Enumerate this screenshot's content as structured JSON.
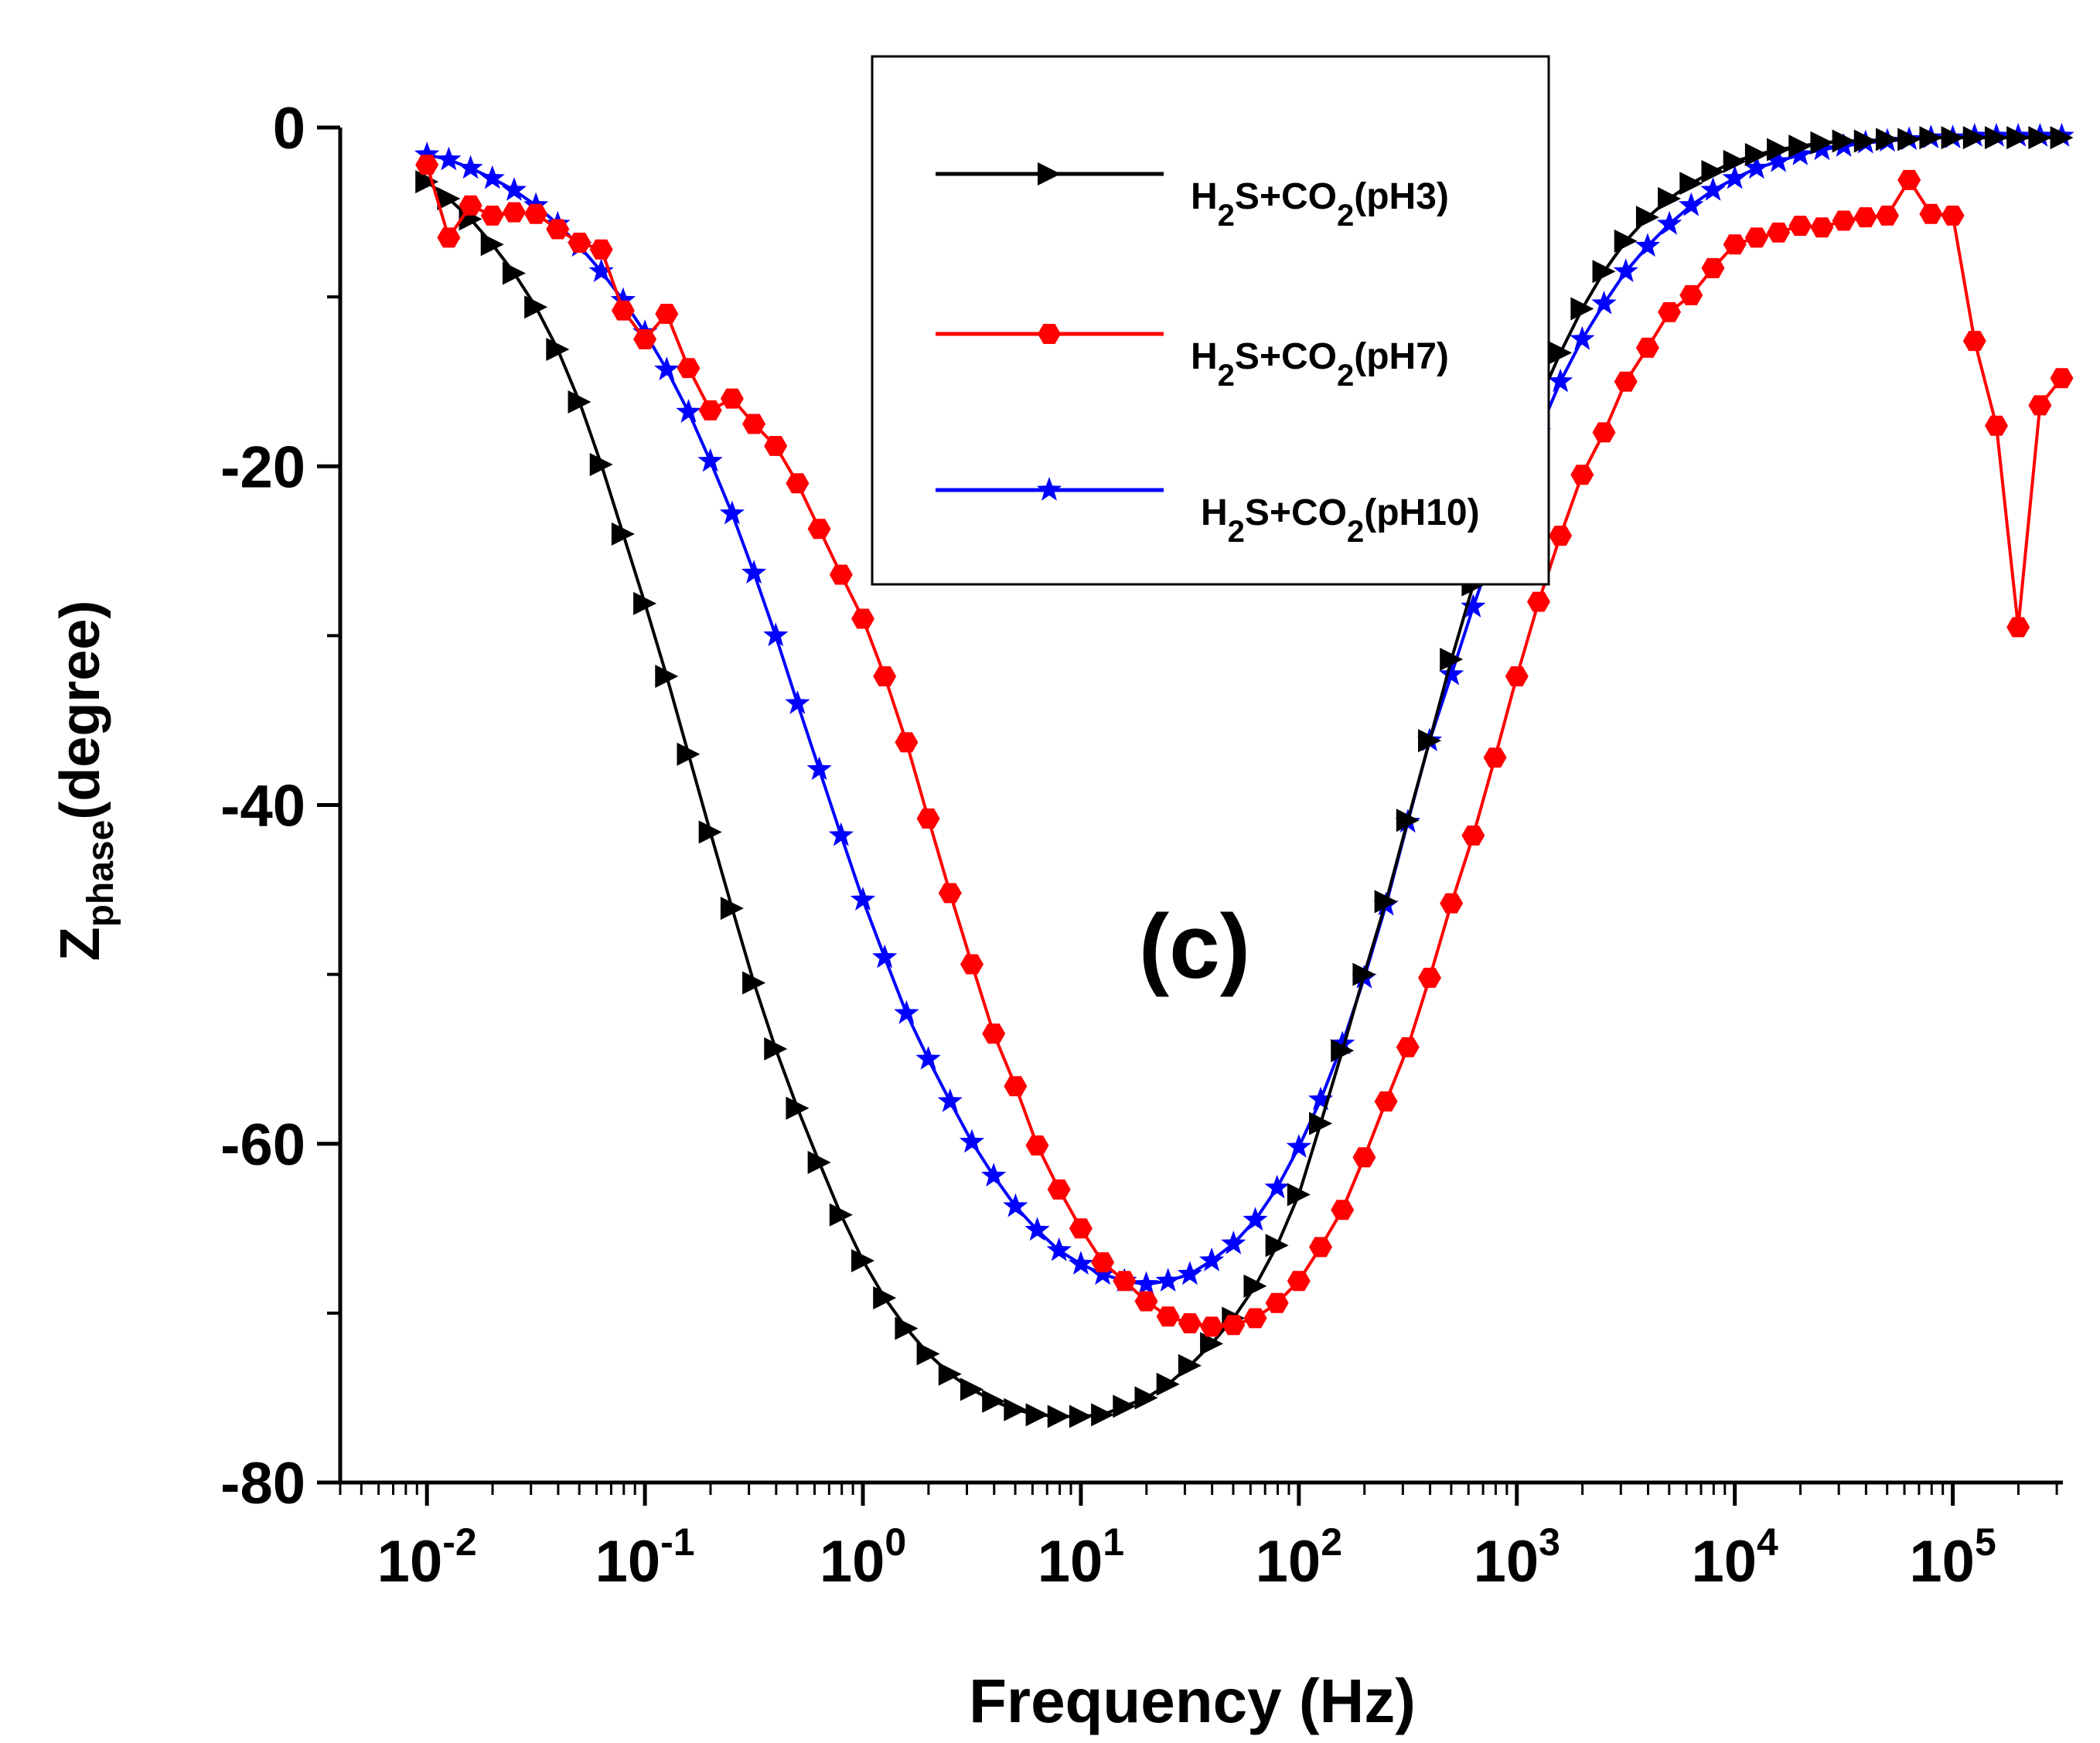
{
  "chart_data": {
    "type": "line",
    "title": "",
    "panel_label": "(c)",
    "xlabel": "Frequency (Hz)",
    "ylabel_main": "Z",
    "ylabel_sub": "phase",
    "ylabel_rest": "(degree)",
    "xscale": "log",
    "xlim": [
      0.004,
      320000
    ],
    "ylim": [
      -80,
      0
    ],
    "yticks": [
      0,
      -20,
      -40,
      -60,
      -80
    ],
    "ytick_labels": [
      "0",
      "-20",
      "-40",
      "-60",
      "-80"
    ],
    "xticks": [
      0.01,
      0.1,
      1,
      10,
      100,
      1000,
      10000,
      100000
    ],
    "xtick_labels": [
      {
        "base": "10",
        "exp": "-2"
      },
      {
        "base": "10",
        "exp": "-1"
      },
      {
        "base": "10",
        "exp": "0"
      },
      {
        "base": "10",
        "exp": "1"
      },
      {
        "base": "10",
        "exp": "2"
      },
      {
        "base": "10",
        "exp": "3"
      },
      {
        "base": "10",
        "exp": "4"
      },
      {
        "base": "10",
        "exp": "5"
      }
    ],
    "legend_position": "top-center",
    "series": [
      {
        "name": "H2S+CO2(pH3)",
        "legend": {
          "a": "H",
          "a_sub": "2",
          "b": "S+CO",
          "b_sub": "2",
          "c": "(pH3)"
        },
        "color": "#000000",
        "marker": "right-triangle",
        "logf": [
          -2,
          -1.9,
          -1.8,
          -1.7,
          -1.6,
          -1.5,
          -1.4,
          -1.3,
          -1.2,
          -1.1,
          -1,
          -0.9,
          -0.8,
          -0.7,
          -0.6,
          -0.5,
          -0.4,
          -0.3,
          -0.2,
          -0.1,
          0,
          0.1,
          0.2,
          0.3,
          0.4,
          0.5,
          0.6,
          0.7,
          0.8,
          0.9,
          1,
          1.1,
          1.2,
          1.3,
          1.4,
          1.5,
          1.6,
          1.7,
          1.8,
          1.9,
          2,
          2.1,
          2.2,
          2.3,
          2.4,
          2.5,
          2.6,
          2.7,
          2.8,
          2.9,
          3,
          3.1,
          3.2,
          3.3,
          3.4,
          3.5,
          3.6,
          3.7,
          3.8,
          3.9,
          4,
          4.1,
          4.2,
          4.3,
          4.4,
          4.5,
          4.6,
          4.7,
          4.8,
          4.9,
          5,
          5.1,
          5.2,
          5.3,
          5.4,
          5.5
        ],
        "values": [
          -3.2,
          -4.2,
          -5.4,
          -6.9,
          -8.6,
          -10.6,
          -13.1,
          -16.2,
          -19.9,
          -24.0,
          -28.1,
          -32.4,
          -37.0,
          -41.6,
          -46.1,
          -50.5,
          -54.4,
          -57.9,
          -61.1,
          -64.2,
          -66.9,
          -69.1,
          -70.9,
          -72.4,
          -73.6,
          -74.5,
          -75.2,
          -75.7,
          -76.0,
          -76.1,
          -76.1,
          -76.0,
          -75.5,
          -75.0,
          -74.2,
          -73.1,
          -71.8,
          -70.3,
          -68.4,
          -66.0,
          -63.0,
          -58.8,
          -54.5,
          -50.0,
          -45.7,
          -40.9,
          -36.2,
          -31.4,
          -27.0,
          -23.1,
          -19.5,
          -16.2,
          -13.3,
          -10.7,
          -8.5,
          -6.7,
          -5.3,
          -4.2,
          -3.3,
          -2.6,
          -2.0,
          -1.6,
          -1.3,
          -1.1,
          -0.9,
          -0.8,
          -0.8,
          -0.7,
          -0.7,
          -0.6,
          -0.6,
          -0.6,
          -0.6,
          -0.6,
          -0.6,
          -0.6
        ]
      },
      {
        "name": "H2S+CO2(pH7)",
        "legend": {
          "a": "H",
          "a_sub": "2",
          "b": "S+CO",
          "b_sub": "2",
          "c": "(pH7)"
        },
        "color": "#ff0000",
        "marker": "hexagon",
        "logf": [
          -2,
          -1.9,
          -1.8,
          -1.7,
          -1.6,
          -1.5,
          -1.4,
          -1.3,
          -1.2,
          -1.1,
          -1,
          -0.9,
          -0.8,
          -0.7,
          -0.6,
          -0.5,
          -0.4,
          -0.3,
          -0.2,
          -0.1,
          0,
          0.1,
          0.2,
          0.3,
          0.4,
          0.5,
          0.6,
          0.7,
          0.8,
          0.9,
          1,
          1.1,
          1.2,
          1.3,
          1.4,
          1.5,
          1.6,
          1.7,
          1.8,
          1.9,
          2,
          2.1,
          2.2,
          2.3,
          2.4,
          2.5,
          2.6,
          2.7,
          2.8,
          2.9,
          3,
          3.1,
          3.2,
          3.3,
          3.4,
          3.5,
          3.6,
          3.7,
          3.8,
          3.9,
          4,
          4.1,
          4.2,
          4.3,
          4.4,
          4.5,
          4.6,
          4.7,
          4.8,
          4.9,
          5,
          5.1,
          5.2,
          5.3,
          5.4,
          5.5
        ],
        "values": [
          -2.2,
          -6.5,
          -4.6,
          -5.2,
          -5.0,
          -5.1,
          -6.0,
          -6.8,
          -7.2,
          -10.8,
          -12.5,
          -11.0,
          -14.2,
          -16.7,
          -16.0,
          -17.5,
          -18.8,
          -21.0,
          -23.7,
          -26.4,
          -29.0,
          -32.4,
          -36.3,
          -40.8,
          -45.2,
          -49.4,
          -53.5,
          -56.6,
          -60.1,
          -62.7,
          -65.0,
          -67.0,
          -68.1,
          -69.3,
          -70.2,
          -70.6,
          -70.8,
          -70.7,
          -70.3,
          -69.4,
          -68.1,
          -66.1,
          -63.9,
          -60.8,
          -57.5,
          -54.3,
          -50.2,
          -45.8,
          -41.8,
          -37.2,
          -32.4,
          -28.0,
          -24.1,
          -20.5,
          -18.0,
          -15.0,
          -13.0,
          -10.9,
          -9.9,
          -8.3,
          -6.9,
          -6.5,
          -6.2,
          -5.8,
          -5.9,
          -5.5,
          -5.3,
          -5.2,
          -3.1,
          -5.1,
          -5.2,
          -12.6,
          -17.6,
          -29.5,
          -16.4,
          -14.8
        ]
      },
      {
        "name": "H2S+CO2(pH10)",
        "legend": {
          "a": "H",
          "a_sub": "2",
          "b": "S+CO",
          "b_sub": "2",
          "c": "(pH10)"
        },
        "color": "#0000ff",
        "marker": "star",
        "logf": [
          -2,
          -1.9,
          -1.8,
          -1.7,
          -1.6,
          -1.5,
          -1.4,
          -1.3,
          -1.2,
          -1.1,
          -1,
          -0.9,
          -0.8,
          -0.7,
          -0.6,
          -0.5,
          -0.4,
          -0.3,
          -0.2,
          -0.1,
          0,
          0.1,
          0.2,
          0.3,
          0.4,
          0.5,
          0.6,
          0.7,
          0.8,
          0.9,
          1,
          1.1,
          1.2,
          1.3,
          1.4,
          1.5,
          1.6,
          1.7,
          1.8,
          1.9,
          2,
          2.1,
          2.2,
          2.3,
          2.4,
          2.5,
          2.6,
          2.7,
          2.8,
          2.9,
          3,
          3.1,
          3.2,
          3.3,
          3.4,
          3.5,
          3.6,
          3.7,
          3.8,
          3.9,
          4,
          4.1,
          4.2,
          4.3,
          4.4,
          4.5,
          4.6,
          4.7,
          4.8,
          4.9,
          5,
          5.1,
          5.2,
          5.3,
          5.4,
          5.5
        ],
        "values": [
          -1.6,
          -1.9,
          -2.4,
          -3.0,
          -3.7,
          -4.6,
          -5.7,
          -7.0,
          -8.5,
          -10.2,
          -12.1,
          -14.3,
          -16.8,
          -19.7,
          -22.8,
          -26.3,
          -30.0,
          -34.0,
          -37.9,
          -41.8,
          -45.6,
          -49.0,
          -52.3,
          -55.0,
          -57.5,
          -59.9,
          -61.9,
          -63.7,
          -65.1,
          -66.3,
          -67.1,
          -67.7,
          -68.1,
          -68.3,
          -68.1,
          -67.7,
          -66.9,
          -65.9,
          -64.5,
          -62.6,
          -60.2,
          -57.4,
          -54.1,
          -50.2,
          -45.9,
          -41.0,
          -36.2,
          -32.3,
          -28.3,
          -24.6,
          -21.1,
          -18.0,
          -15.0,
          -12.5,
          -10.4,
          -8.5,
          -7.0,
          -5.7,
          -4.6,
          -3.7,
          -3.0,
          -2.4,
          -2.0,
          -1.6,
          -1.3,
          -1.1,
          -0.9,
          -0.8,
          -0.7,
          -0.6,
          -0.6,
          -0.5,
          -0.5,
          -0.5,
          -0.5,
          -0.5
        ]
      }
    ]
  }
}
